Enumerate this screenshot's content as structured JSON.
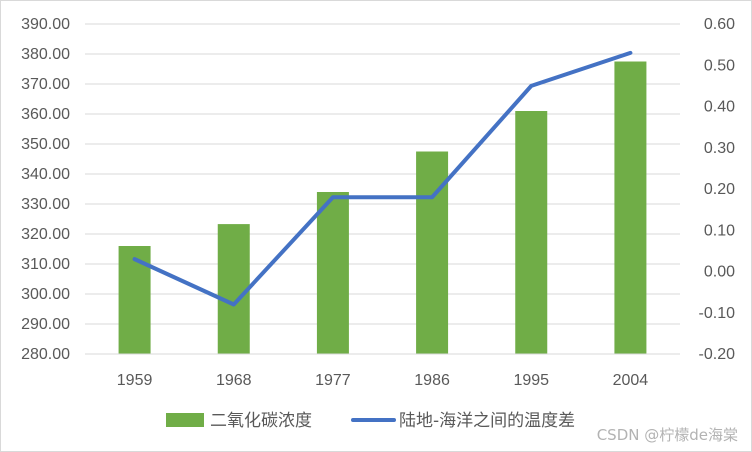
{
  "chart_data": {
    "type": "bar",
    "categories": [
      "1959",
      "1968",
      "1977",
      "1986",
      "1995",
      "2004"
    ],
    "series": [
      {
        "name": "二氧化碳浓度",
        "kind": "bar",
        "axis": "left",
        "color": "#70ad47",
        "values": [
          316.0,
          323.3,
          334.0,
          347.5,
          361.0,
          377.5
        ]
      },
      {
        "name": "陆地-海洋之间的温度差",
        "kind": "line",
        "axis": "right",
        "color": "#4472c4",
        "values": [
          0.03,
          -0.08,
          0.18,
          0.18,
          0.45,
          0.53
        ]
      }
    ],
    "y_left": {
      "ylim": [
        280,
        390
      ],
      "ticks": [
        "280.00",
        "290.00",
        "300.00",
        "310.00",
        "320.00",
        "330.00",
        "340.00",
        "350.00",
        "360.00",
        "370.00",
        "380.00",
        "390.00"
      ]
    },
    "y_right": {
      "ylim": [
        -0.2,
        0.6
      ],
      "ticks": [
        "-0.20",
        "-0.10",
        "0.00",
        "0.10",
        "0.20",
        "0.30",
        "0.40",
        "0.50",
        "0.60"
      ]
    },
    "title": "",
    "xlabel": "",
    "ylabel": "",
    "grid": true,
    "legend_position": "bottom"
  },
  "watermark": "CSDN @柠檬de海棠"
}
